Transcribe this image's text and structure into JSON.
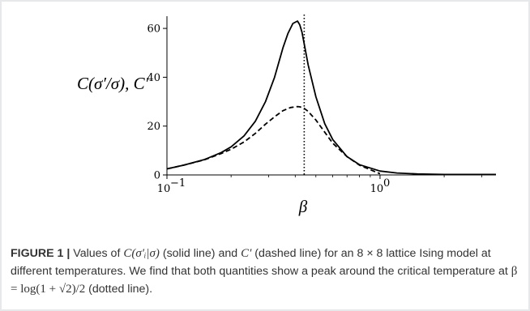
{
  "chart_data": {
    "type": "line",
    "xscale": "log",
    "xlim": [
      0.1,
      3.5
    ],
    "ylim": [
      0,
      65
    ],
    "xticks": [
      0.1,
      1
    ],
    "xtick_labels": [
      "10",
      "10"
    ],
    "xtick_exponents": [
      "−1",
      "0"
    ],
    "yticks": [
      0,
      20,
      40,
      60
    ],
    "ytick_labels": [
      "0",
      "20",
      "40",
      "60"
    ],
    "xlabel": "β",
    "ylabel": "C(σ′/σ), C′",
    "grid": false,
    "critical_beta": 0.4407,
    "series": [
      {
        "style": "solid",
        "color": "#000000",
        "x": [
          0.1,
          0.12,
          0.15,
          0.18,
          0.2,
          0.23,
          0.26,
          0.29,
          0.32,
          0.35,
          0.37,
          0.39,
          0.41,
          0.42,
          0.43,
          0.44,
          0.46,
          0.5,
          0.55,
          0.6,
          0.7,
          0.8,
          1.0,
          1.2,
          1.5,
          2.0,
          2.5,
          3.5
        ],
        "y": [
          2.5,
          4.0,
          6.3,
          9.2,
          11.5,
          16.0,
          22.0,
          30.0,
          40.0,
          52.0,
          58.0,
          62.0,
          63.0,
          61.5,
          58.5,
          54.0,
          45.0,
          32.0,
          21.0,
          14.5,
          7.5,
          4.2,
          1.6,
          0.8,
          0.4,
          0.2,
          0.2,
          0.2
        ]
      },
      {
        "style": "dashed",
        "color": "#000000",
        "x": [
          0.1,
          0.12,
          0.15,
          0.18,
          0.2,
          0.23,
          0.26,
          0.29,
          0.32,
          0.35,
          0.38,
          0.41,
          0.42,
          0.44,
          0.46,
          0.5,
          0.55,
          0.6,
          0.7,
          0.8,
          1.0
        ],
        "y": [
          2.5,
          4.0,
          6.2,
          8.8,
          10.5,
          13.5,
          17.0,
          20.8,
          23.8,
          26.3,
          27.6,
          28.0,
          27.9,
          27.3,
          26.0,
          22.5,
          17.5,
          13.0,
          7.5,
          4.0,
          0.5
        ]
      }
    ]
  },
  "caption": {
    "label": "FIGURE 1 |",
    "part1": " Values of ",
    "math1": "C(σ′ᵢ|σ)",
    "part2": " (solid line) and ",
    "math2": "C′",
    "part3": " (dashed line) for an 8 × 8 lattice Ising model at different temperatures. We find that both quantities show a peak around the critical temperature at ",
    "math3": "β = log(1 + √2)/2",
    "part4": " (dotted line)."
  },
  "colors": {
    "frame": "#e7e8e9",
    "caption_text": "#333333",
    "line": "#000000"
  }
}
